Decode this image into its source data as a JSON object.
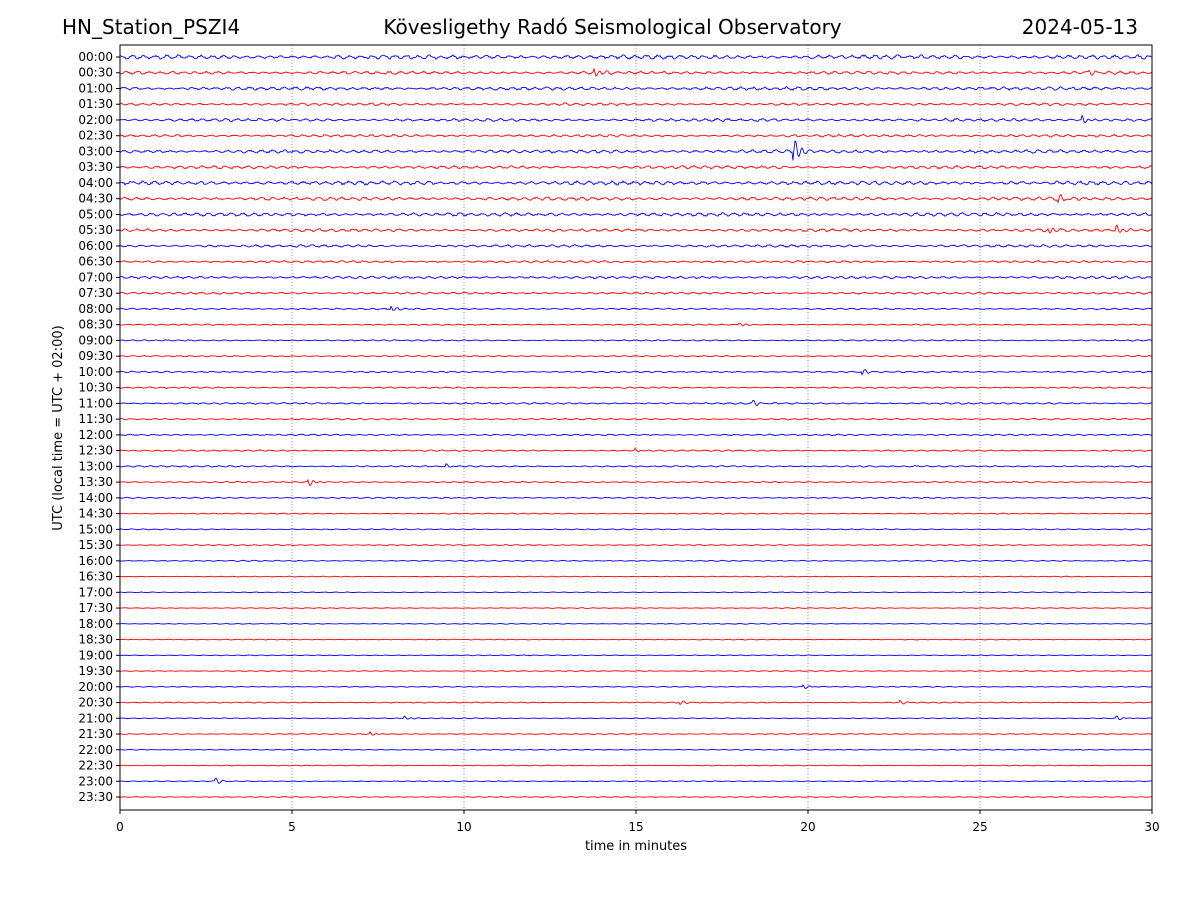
{
  "chart_data": {
    "type": "line",
    "title_left": "HN_Station_PSZI4",
    "title": "Kövesligethy Radó Seismological Observatory",
    "title_right": "2024-05-13",
    "xlabel": "time in minutes",
    "ylabel": "UTC (local time = UTC + 02:00)",
    "xlim": [
      0,
      30
    ],
    "x_ticks": [
      "0",
      "5",
      "10",
      "15",
      "20",
      "25",
      "30"
    ],
    "x_tick_values": [
      0,
      5,
      10,
      15,
      20,
      25,
      30
    ],
    "grid": "vertical dotted at x ticks",
    "colors": {
      "even_rows": "#0000ff",
      "odd_rows": "#ff0000"
    },
    "row_labels": [
      "00:00",
      "00:30",
      "01:00",
      "01:30",
      "02:00",
      "02:30",
      "03:00",
      "03:30",
      "04:00",
      "04:30",
      "05:00",
      "05:30",
      "06:00",
      "06:30",
      "07:00",
      "07:30",
      "08:00",
      "08:30",
      "09:00",
      "09:30",
      "10:00",
      "10:30",
      "11:00",
      "11:30",
      "12:00",
      "12:30",
      "13:00",
      "13:30",
      "14:00",
      "14:30",
      "15:00",
      "15:30",
      "16:00",
      "16:30",
      "17:00",
      "17:30",
      "18:00",
      "18:30",
      "19:00",
      "19:30",
      "20:00",
      "20:30",
      "21:00",
      "21:30",
      "22:00",
      "22:30",
      "23:00",
      "23:30"
    ],
    "noise_levels": [
      1.0,
      0.7,
      0.8,
      0.6,
      0.7,
      0.6,
      0.8,
      0.7,
      0.9,
      0.8,
      0.8,
      0.7,
      0.6,
      0.5,
      0.6,
      0.5,
      0.35,
      0.3,
      0.3,
      0.3,
      0.35,
      0.35,
      0.4,
      0.35,
      0.35,
      0.35,
      0.35,
      0.3,
      0.3,
      0.25,
      0.25,
      0.25,
      0.25,
      0.2,
      0.2,
      0.2,
      0.2,
      0.2,
      0.2,
      0.2,
      0.2,
      0.25,
      0.2,
      0.2,
      0.2,
      0.2,
      0.2,
      0.2
    ],
    "events": [
      {
        "row": "00:30",
        "minute": 13.8,
        "amplitude": 5
      },
      {
        "row": "00:30",
        "minute": 28.2,
        "amplitude": 3
      },
      {
        "row": "02:00",
        "minute": 28.0,
        "amplitude": 4
      },
      {
        "row": "03:00",
        "minute": 19.6,
        "amplitude": 14
      },
      {
        "row": "04:30",
        "minute": 27.3,
        "amplitude": 4
      },
      {
        "row": "05:30",
        "minute": 27.0,
        "amplitude": 4
      },
      {
        "row": "05:30",
        "minute": 29.0,
        "amplitude": 5
      },
      {
        "row": "08:00",
        "minute": 7.9,
        "amplitude": 3
      },
      {
        "row": "08:30",
        "minute": 18.0,
        "amplitude": 2
      },
      {
        "row": "10:00",
        "minute": 21.6,
        "amplitude": 3
      },
      {
        "row": "11:00",
        "minute": 18.4,
        "amplitude": 3
      },
      {
        "row": "12:30",
        "minute": 15.0,
        "amplitude": 2
      },
      {
        "row": "13:00",
        "minute": 9.5,
        "amplitude": 2
      },
      {
        "row": "13:30",
        "minute": 5.5,
        "amplitude": 4
      },
      {
        "row": "20:00",
        "minute": 19.9,
        "amplitude": 2
      },
      {
        "row": "20:30",
        "minute": 16.3,
        "amplitude": 2
      },
      {
        "row": "20:30",
        "minute": 22.7,
        "amplitude": 2
      },
      {
        "row": "21:00",
        "minute": 8.3,
        "amplitude": 2
      },
      {
        "row": "21:00",
        "minute": 29.0,
        "amplitude": 2
      },
      {
        "row": "21:30",
        "minute": 7.3,
        "amplitude": 2
      },
      {
        "row": "23:00",
        "minute": 2.8,
        "amplitude": 3
      }
    ]
  }
}
